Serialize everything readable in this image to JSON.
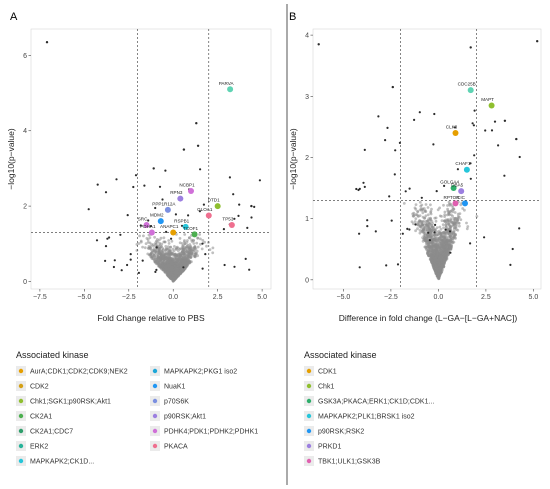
{
  "panels": [
    {
      "letter": "A",
      "xlabel": "Fold Change relative to PBS",
      "ylabel": "−log10(p−value)",
      "xticks": [
        "−7.5",
        "−5.0",
        "−2.5",
        "0.0",
        "2.5",
        "5.0"
      ],
      "yticks": [
        "0",
        "2",
        "4",
        "6"
      ],
      "legend": {
        "title": "Associated kinase",
        "entries": [
          {
            "label": "AurA;CDK1;CDK2;CDK9;NEK2",
            "color": "#e69f00"
          },
          {
            "label": "CDK2",
            "color": "#d4a017"
          },
          {
            "label": "Chk1;SGK1;p90RSK;Akt1",
            "color": "#8fbf2f"
          },
          {
            "label": "CK2A1",
            "color": "#4caf50"
          },
          {
            "label": "CK2A1;CDC7",
            "color": "#2e9e6b"
          },
          {
            "label": "ERK2",
            "color": "#27b39a"
          },
          {
            "label": "MAPKAPK2;CK1D...",
            "color": "#26c6da"
          },
          {
            "label": "MAPKAPK2;PKG1 iso2",
            "color": "#1ea7d8"
          },
          {
            "label": "NuaK1",
            "color": "#2196f3"
          },
          {
            "label": "p70S6K",
            "color": "#7b8fe0"
          },
          {
            "label": "p90RSK;Akt1",
            "color": "#9c7fe0"
          },
          {
            "label": "PDHK4;PDK1;PDHK2;PDHK1",
            "color": "#d070d8"
          },
          {
            "label": "PKACA",
            "color": "#ef6f8f"
          }
        ]
      }
    },
    {
      "letter": "B",
      "xlabel": "Difference in fold change (L−GA−[L−GA+NAC])",
      "ylabel": "−log10(p−value)",
      "xticks": [
        "−5.0",
        "−2.5",
        "0.0",
        "2.5",
        "5.0"
      ],
      "yticks": [
        "0",
        "1",
        "2",
        "3",
        "4"
      ],
      "legend": {
        "title": "Associated kinase",
        "entries": [
          {
            "label": "CDK1",
            "color": "#e69f00"
          },
          {
            "label": "Chk1",
            "color": "#8fbf2f"
          },
          {
            "label": "GSK3A;PKACA;ERK1;CK1D;CDK1...",
            "color": "#2eae6b"
          },
          {
            "label": "MAPKAPK2;PLK1;BRSK1 iso2",
            "color": "#26c6da"
          },
          {
            "label": "p90RSK;RSK2",
            "color": "#2196f3"
          },
          {
            "label": "PRKD1",
            "color": "#9c7fe0"
          },
          {
            "label": "TBK1;ULK1;GSK3B",
            "color": "#e060b0"
          }
        ]
      }
    }
  ],
  "chart_data": [
    {
      "type": "scatter",
      "panel": "A",
      "xlabel": "Fold Change relative to PBS",
      "ylabel": "−log10(p−value)",
      "xlim": [
        -8,
        5.5
      ],
      "ylim": [
        -0.2,
        6.7
      ],
      "thresholds": {
        "x": [
          -2,
          2
        ],
        "y": 1.3
      },
      "grid": false,
      "legend_position": "bottom",
      "highlighted": [
        {
          "label": "PARVA",
          "x": 3.2,
          "y": 5.1,
          "color": "#5fd3b3"
        },
        {
          "label": "NCBP1",
          "x": 1.0,
          "y": 2.4,
          "color": "#d070d8"
        },
        {
          "label": "RPN3",
          "x": 0.4,
          "y": 2.2,
          "color": "#9c7fe0"
        },
        {
          "label": "DTD1",
          "x": 2.5,
          "y": 2.0,
          "color": "#8fbf2f"
        },
        {
          "label": "PPP1R12A",
          "x": -0.3,
          "y": 1.9,
          "color": "#7b8fe0"
        },
        {
          "label": "GLOA1",
          "x": 2.0,
          "y": 1.75,
          "color": "#ef6f8f"
        },
        {
          "label": "MDM2",
          "x": -0.7,
          "y": 1.6,
          "color": "#2196f3"
        },
        {
          "label": "SRC",
          "x": -1.5,
          "y": 1.5,
          "color": "#d070d8"
        },
        {
          "label": "RSPB1",
          "x": 0.7,
          "y": 1.45,
          "color": "#26c6da"
        },
        {
          "label": "TP53",
          "x": 3.3,
          "y": 1.5,
          "color": "#ef6f8f"
        },
        {
          "label": "PDHA1",
          "x": -1.2,
          "y": 1.3,
          "color": "#d070d8"
        },
        {
          "label": "ANAPC1",
          "x": 0.0,
          "y": 1.3,
          "color": "#e69f00"
        },
        {
          "label": "TCOF1",
          "x": 1.2,
          "y": 1.25,
          "color": "#4caf50"
        }
      ]
    },
    {
      "type": "scatter",
      "panel": "B",
      "xlabel": "Difference in fold change (L−GA−[L−GA+NAC])",
      "ylabel": "−log10(p−value)",
      "xlim": [
        -6.6,
        5.4
      ],
      "ylim": [
        -0.15,
        4.1
      ],
      "thresholds": {
        "x": [
          -2,
          2
        ],
        "y": 1.3
      },
      "grid": false,
      "legend_position": "bottom",
      "highlighted": [
        {
          "label": "CDC25B",
          "x": 1.7,
          "y": 3.1,
          "color": "#5fd3b3"
        },
        {
          "label": "MAPT",
          "x": 2.8,
          "y": 2.85,
          "color": "#8fbf2f"
        },
        {
          "label": "CLK3",
          "x": 0.9,
          "y": 2.4,
          "color": "#e69f00"
        },
        {
          "label": "CHAF1",
          "x": 1.5,
          "y": 1.8,
          "color": "#26c6da"
        },
        {
          "label": "GOLGA4",
          "x": 0.8,
          "y": 1.5,
          "color": "#2eae6b"
        },
        {
          "label": "DBA5",
          "x": 1.2,
          "y": 1.45,
          "color": "#9c7fe0"
        },
        {
          "label": "RPTOR",
          "x": 0.9,
          "y": 1.25,
          "color": "#e060b0"
        },
        {
          "label": "CIC",
          "x": 1.4,
          "y": 1.25,
          "color": "#2196f3"
        }
      ]
    }
  ]
}
